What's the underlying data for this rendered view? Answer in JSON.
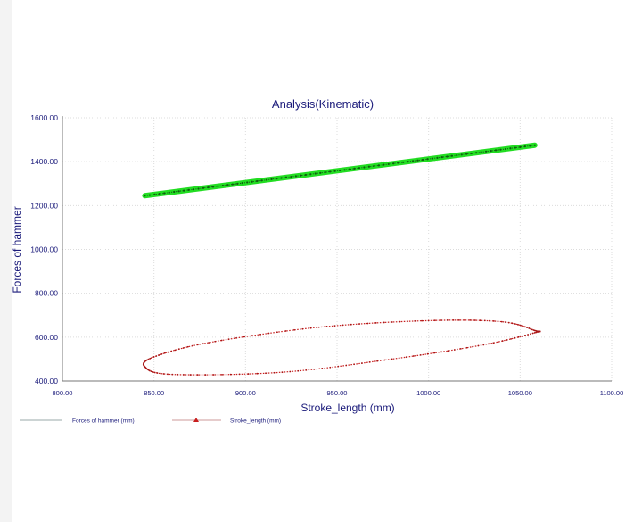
{
  "chart_data": {
    "type": "scatter",
    "title": "Analysis(Kinematic)",
    "xlabel": "Stroke_length (mm)",
    "ylabel": "Forces of hammer",
    "xlim": [
      800,
      1100
    ],
    "ylim": [
      400,
      1600
    ],
    "x_ticks": [
      "800.00",
      "850.00",
      "900.00",
      "950.00",
      "1000.00",
      "1050.00",
      "1100.00"
    ],
    "y_ticks": [
      "400.00",
      "600.00",
      "800.00",
      "1000.00",
      "1200.00",
      "1400.00",
      "1600.00"
    ],
    "grid": true,
    "legend_position": "bottom-left",
    "series": [
      {
        "name": "Forces of hammer (mm)",
        "kind": "line",
        "color": "#22dd22",
        "x": [
          845,
          1058
        ],
        "y": [
          1245,
          1475
        ]
      },
      {
        "name": "Stroke_length (mm)",
        "kind": "loop",
        "color": "#c81e1e",
        "x": [
          1058,
          1040,
          1000,
          940,
          880,
          850,
          845,
          860,
          920,
          980,
          1030,
          1058
        ],
        "y": [
          630,
          670,
          675,
          645,
          575,
          510,
          465,
          430,
          440,
          500,
          565,
          620
        ]
      }
    ]
  }
}
